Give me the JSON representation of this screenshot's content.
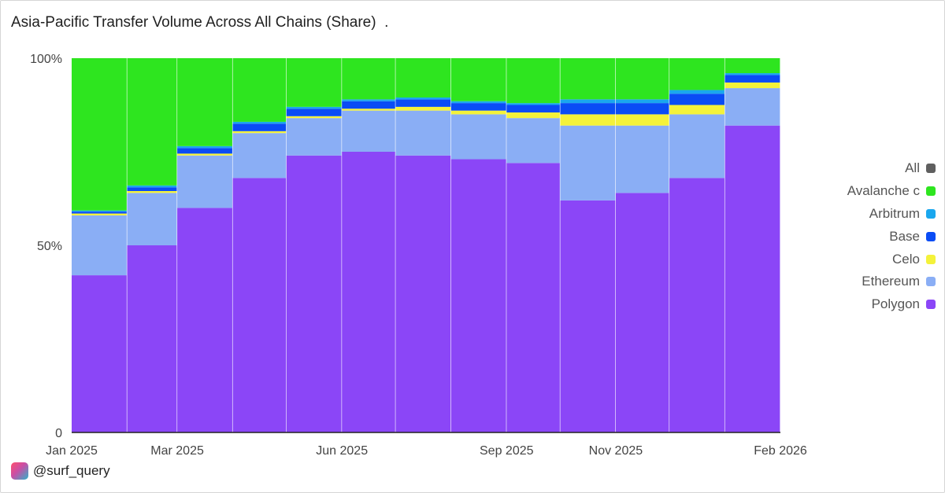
{
  "chart_data": {
    "type": "bar",
    "stacked": true,
    "normalized": true,
    "title": "Asia-Pacific Transfer Volume Across All Chains (Share)  .",
    "xlabel": "",
    "ylabel": "",
    "x_range": [
      "2025-01-01",
      "2026-02-01"
    ],
    "y_ticks": [
      "0",
      "50%",
      "100%"
    ],
    "ylim": [
      0,
      100
    ],
    "x_ticks": [
      {
        "date": "2025-01-01",
        "label": "Jan 2025"
      },
      {
        "date": "2025-03-01",
        "label": "Mar 2025"
      },
      {
        "date": "2025-06-01",
        "label": "Jun 2025"
      },
      {
        "date": "2025-09-01",
        "label": "Sep 2025"
      },
      {
        "date": "2025-11-01",
        "label": "Nov 2025"
      },
      {
        "date": "2026-02-01",
        "label": "Feb 2026"
      }
    ],
    "grid": false,
    "legend_position": "right",
    "legend": [
      {
        "name": "All",
        "color": "#5f5f5f"
      },
      {
        "name": "Avalanche c",
        "color": "#2ee51f"
      },
      {
        "name": "Arbitrum",
        "color": "#1aa7ee"
      },
      {
        "name": "Base",
        "color": "#0a4cf5"
      },
      {
        "name": "Celo",
        "color": "#f4f23a"
      },
      {
        "name": "Ethereum",
        "color": "#8aaef5"
      },
      {
        "name": "Polygon",
        "color": "#8b46f7"
      }
    ],
    "series_order_bottom_to_top": [
      "Polygon",
      "Ethereum",
      "Celo",
      "Base",
      "Arbitrum",
      "Avalanche c"
    ],
    "monthly_average_share_percent": [
      {
        "month": "2025-01",
        "Polygon": 42,
        "Ethereum": 16,
        "Celo": 0.5,
        "Base": 0.5,
        "Arbitrum": 0.3,
        "Avalanche c": 40.7
      },
      {
        "month": "2025-02",
        "Polygon": 50,
        "Ethereum": 14,
        "Celo": 0.5,
        "Base": 1,
        "Arbitrum": 0.5,
        "Avalanche c": 34
      },
      {
        "month": "2025-03",
        "Polygon": 60,
        "Ethereum": 14,
        "Celo": 0.5,
        "Base": 1.5,
        "Arbitrum": 0.5,
        "Avalanche c": 23.5
      },
      {
        "month": "2025-04",
        "Polygon": 68,
        "Ethereum": 12,
        "Celo": 0.5,
        "Base": 2,
        "Arbitrum": 0.5,
        "Avalanche c": 17
      },
      {
        "month": "2025-05",
        "Polygon": 74,
        "Ethereum": 10,
        "Celo": 0.5,
        "Base": 2,
        "Arbitrum": 0.5,
        "Avalanche c": 13
      },
      {
        "month": "2025-06",
        "Polygon": 75,
        "Ethereum": 11,
        "Celo": 0.5,
        "Base": 2,
        "Arbitrum": 0.5,
        "Avalanche c": 11
      },
      {
        "month": "2025-07",
        "Polygon": 74,
        "Ethereum": 12,
        "Celo": 1,
        "Base": 2,
        "Arbitrum": 0.5,
        "Avalanche c": 10.5
      },
      {
        "month": "2025-08",
        "Polygon": 73,
        "Ethereum": 12,
        "Celo": 1,
        "Base": 2,
        "Arbitrum": 0.5,
        "Avalanche c": 11.5
      },
      {
        "month": "2025-09",
        "Polygon": 72,
        "Ethereum": 12,
        "Celo": 1.5,
        "Base": 2,
        "Arbitrum": 0.5,
        "Avalanche c": 12
      },
      {
        "month": "2025-10",
        "Polygon": 62,
        "Ethereum": 20,
        "Celo": 3,
        "Base": 3,
        "Arbitrum": 1,
        "Avalanche c": 11
      },
      {
        "month": "2025-11",
        "Polygon": 64,
        "Ethereum": 18,
        "Celo": 3,
        "Base": 3,
        "Arbitrum": 1,
        "Avalanche c": 11
      },
      {
        "month": "2025-12",
        "Polygon": 68,
        "Ethereum": 17,
        "Celo": 2.5,
        "Base": 3,
        "Arbitrum": 1,
        "Avalanche c": 8.5
      },
      {
        "month": "2026-01",
        "Polygon": 82,
        "Ethereum": 10,
        "Celo": 1.5,
        "Base": 2,
        "Arbitrum": 0.5,
        "Avalanche c": 4
      }
    ]
  },
  "brand": {
    "handle": "@surf_query"
  }
}
